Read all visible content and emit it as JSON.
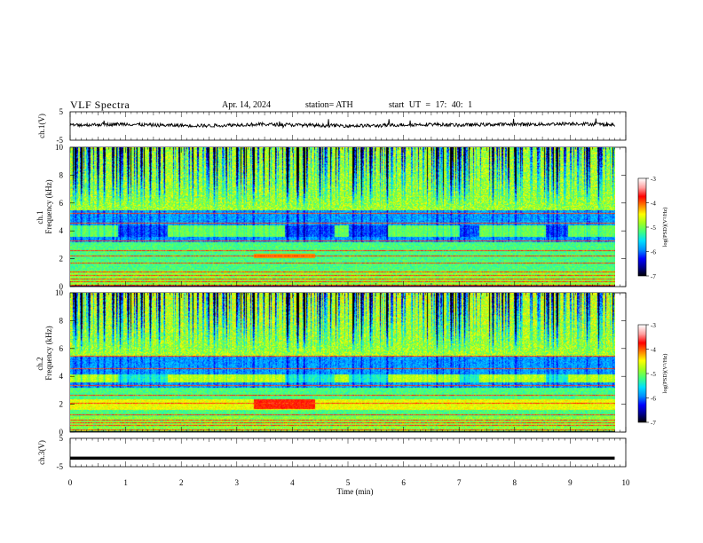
{
  "header": {
    "title": "VLF Spectra",
    "date": "Apr. 14, 2024",
    "station": "station= ATH",
    "start_ut": "start  UT =   17: 40: 1"
  },
  "colors": {
    "background": "#ffffff",
    "trace": "#000000",
    "colormap": [
      "#000000",
      "#00008b",
      "#0000ff",
      "#0090ff",
      "#00e0ff",
      "#40ff80",
      "#a0ff20",
      "#ffff00",
      "#ff8000",
      "#ff0000",
      "#ffa0a0",
      "#ffffff"
    ]
  },
  "chart_data": [
    {
      "id": "ch1-waveform",
      "type": "line",
      "ylabel": "ch.1(V)",
      "yticks": [
        "5",
        "-5"
      ],
      "ylim": [
        -5,
        5
      ],
      "xlim": [
        0,
        10
      ],
      "mean_level": 0,
      "series": [
        {
          "values_description_free": true,
          "x": [
            0,
            0.5,
            1,
            1.5,
            2,
            2.5,
            3,
            3.5,
            4,
            4.5,
            5,
            5.5,
            6,
            6.5,
            7,
            7.5,
            8,
            8.5,
            9,
            9.5,
            9.8
          ],
          "y": [
            0.3,
            0.5,
            0.7,
            0.3,
            0.2,
            0.1,
            0.4,
            0.6,
            0.4,
            0.2,
            0.1,
            0.1,
            0.4,
            0.6,
            0.3,
            0.5,
            0.6,
            0.6,
            0.9,
            0.6,
            0.4
          ]
        }
      ]
    },
    {
      "id": "ch1-spectrogram",
      "type": "heatmap",
      "ylabel": "ch.1\nFrequency (kHz)",
      "ylabel_parts": [
        "ch.1",
        "Frequency  (kHz)"
      ],
      "yticks": [
        "0",
        "2",
        "4",
        "6",
        "8",
        "10"
      ],
      "ylim": [
        0,
        10
      ],
      "xlim": [
        0,
        10
      ],
      "colorbar_label": "log(PSD)(V²/Hz)",
      "colorbar_ticks": [
        "-3",
        "-4",
        "-5",
        "-6",
        "-7"
      ],
      "colorbar_range": [
        -7,
        -3
      ],
      "quiet_intervals_min": [
        [
          0.85,
          1.75
        ],
        [
          3.85,
          4.75
        ],
        [
          5.0,
          5.7
        ],
        [
          7.0,
          7.35
        ],
        [
          8.55,
          8.95
        ]
      ]
    },
    {
      "id": "ch2-spectrogram",
      "type": "heatmap",
      "ylabel_parts": [
        "ch.2",
        "Frequency  (kHz)"
      ],
      "yticks": [
        "0",
        "2",
        "4",
        "6",
        "8",
        "10"
      ],
      "ylim": [
        0,
        10
      ],
      "xlim": [
        0,
        10
      ],
      "colorbar_label": "log(PSD)(V²/Hz)",
      "colorbar_ticks": [
        "-3",
        "-4",
        "-5",
        "-6",
        "-7"
      ],
      "colorbar_range": [
        -7,
        -3
      ]
    },
    {
      "id": "ch3-waveform",
      "type": "line",
      "ylabel": "ch.3(V)",
      "yticks": [
        "5",
        "-5"
      ],
      "ylim": [
        -5,
        5
      ],
      "xlim": [
        0,
        10
      ],
      "series": [
        {
          "x": [
            0,
            9.8
          ],
          "y": [
            -2,
            -2
          ]
        }
      ],
      "xlabel": "Time  (min)",
      "xticks": [
        "0",
        "1",
        "2",
        "3",
        "4",
        "5",
        "6",
        "7",
        "8",
        "9",
        "10"
      ]
    }
  ]
}
